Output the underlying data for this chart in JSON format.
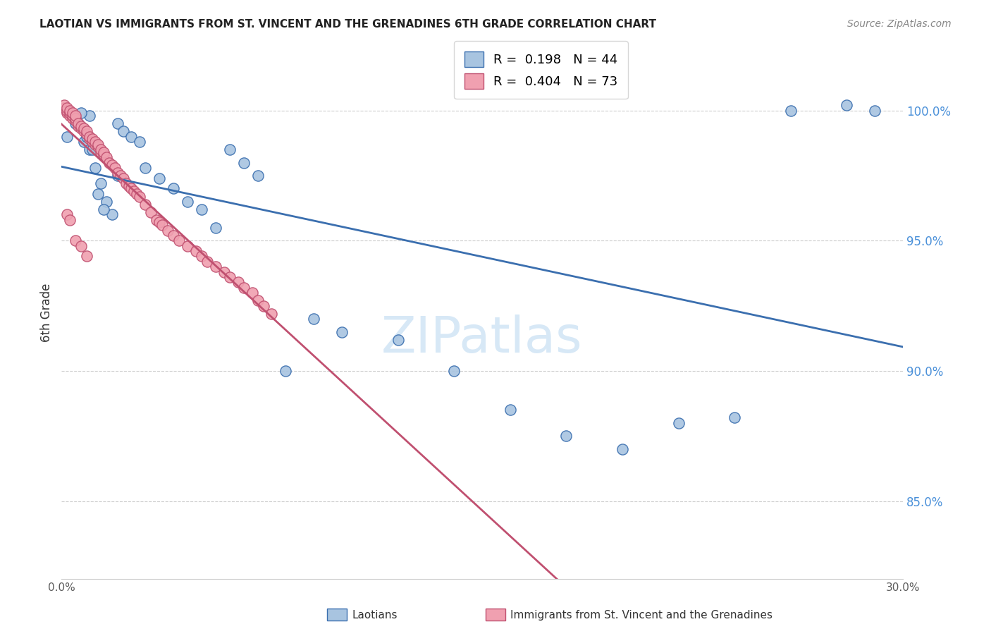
{
  "title": "LAOTIAN VS IMMIGRANTS FROM ST. VINCENT AND THE GRENADINES 6TH GRADE CORRELATION CHART",
  "source": "Source: ZipAtlas.com",
  "ylabel": "6th Grade",
  "xlim": [
    0.0,
    0.3
  ],
  "ylim": [
    0.82,
    1.025
  ],
  "legend_blue_label": "Laotians",
  "legend_pink_label": "Immigrants from St. Vincent and the Grenadines",
  "R_blue": 0.198,
  "N_blue": 44,
  "R_pink": 0.404,
  "N_pink": 73,
  "blue_color": "#a8c4e0",
  "blue_line_color": "#3b6faf",
  "pink_color": "#f0a0b0",
  "pink_line_color": "#c05070",
  "blue_scatter_x": [
    0.002,
    0.004,
    0.006,
    0.008,
    0.01,
    0.012,
    0.014,
    0.016,
    0.018,
    0.02,
    0.022,
    0.025,
    0.028,
    0.03,
    0.035,
    0.04,
    0.045,
    0.05,
    0.055,
    0.06,
    0.065,
    0.07,
    0.08,
    0.09,
    0.1,
    0.12,
    0.14,
    0.16,
    0.18,
    0.2,
    0.22,
    0.24,
    0.26,
    0.28,
    0.29,
    0.01,
    0.015,
    0.02,
    0.005,
    0.007,
    0.009,
    0.011,
    0.013,
    0.015
  ],
  "blue_scatter_y": [
    0.99,
    0.998,
    0.995,
    0.988,
    0.985,
    0.978,
    0.972,
    0.965,
    0.96,
    0.995,
    0.992,
    0.99,
    0.988,
    0.978,
    0.974,
    0.97,
    0.965,
    0.962,
    0.955,
    0.985,
    0.98,
    0.975,
    0.9,
    0.92,
    0.915,
    0.912,
    0.9,
    0.885,
    0.875,
    0.87,
    0.88,
    0.882,
    1.0,
    1.002,
    1.0,
    0.998,
    0.983,
    0.975,
    0.995,
    0.999,
    0.99,
    0.985,
    0.968,
    0.962
  ],
  "pink_scatter_x": [
    0.001,
    0.001,
    0.002,
    0.002,
    0.002,
    0.003,
    0.003,
    0.003,
    0.004,
    0.004,
    0.004,
    0.005,
    0.005,
    0.005,
    0.006,
    0.006,
    0.007,
    0.007,
    0.008,
    0.008,
    0.009,
    0.009,
    0.01,
    0.01,
    0.011,
    0.011,
    0.012,
    0.012,
    0.013,
    0.013,
    0.014,
    0.014,
    0.015,
    0.015,
    0.016,
    0.017,
    0.018,
    0.019,
    0.02,
    0.021,
    0.022,
    0.023,
    0.024,
    0.025,
    0.026,
    0.027,
    0.028,
    0.03,
    0.032,
    0.034,
    0.035,
    0.036,
    0.038,
    0.04,
    0.042,
    0.045,
    0.048,
    0.05,
    0.052,
    0.055,
    0.058,
    0.06,
    0.063,
    0.065,
    0.068,
    0.07,
    0.072,
    0.075,
    0.002,
    0.003,
    0.005,
    0.007,
    0.009
  ],
  "pink_scatter_y": [
    1.001,
    1.002,
    0.999,
    1.0,
    1.001,
    0.998,
    0.999,
    1.0,
    0.997,
    0.998,
    0.999,
    0.996,
    0.997,
    0.998,
    0.994,
    0.995,
    0.993,
    0.994,
    0.992,
    0.993,
    0.991,
    0.992,
    0.989,
    0.99,
    0.988,
    0.989,
    0.987,
    0.988,
    0.986,
    0.987,
    0.984,
    0.985,
    0.983,
    0.984,
    0.982,
    0.98,
    0.979,
    0.978,
    0.976,
    0.975,
    0.974,
    0.972,
    0.971,
    0.97,
    0.969,
    0.968,
    0.967,
    0.964,
    0.961,
    0.958,
    0.957,
    0.956,
    0.954,
    0.952,
    0.95,
    0.948,
    0.946,
    0.944,
    0.942,
    0.94,
    0.938,
    0.936,
    0.934,
    0.932,
    0.93,
    0.927,
    0.925,
    0.922,
    0.96,
    0.958,
    0.95,
    0.948,
    0.944
  ]
}
